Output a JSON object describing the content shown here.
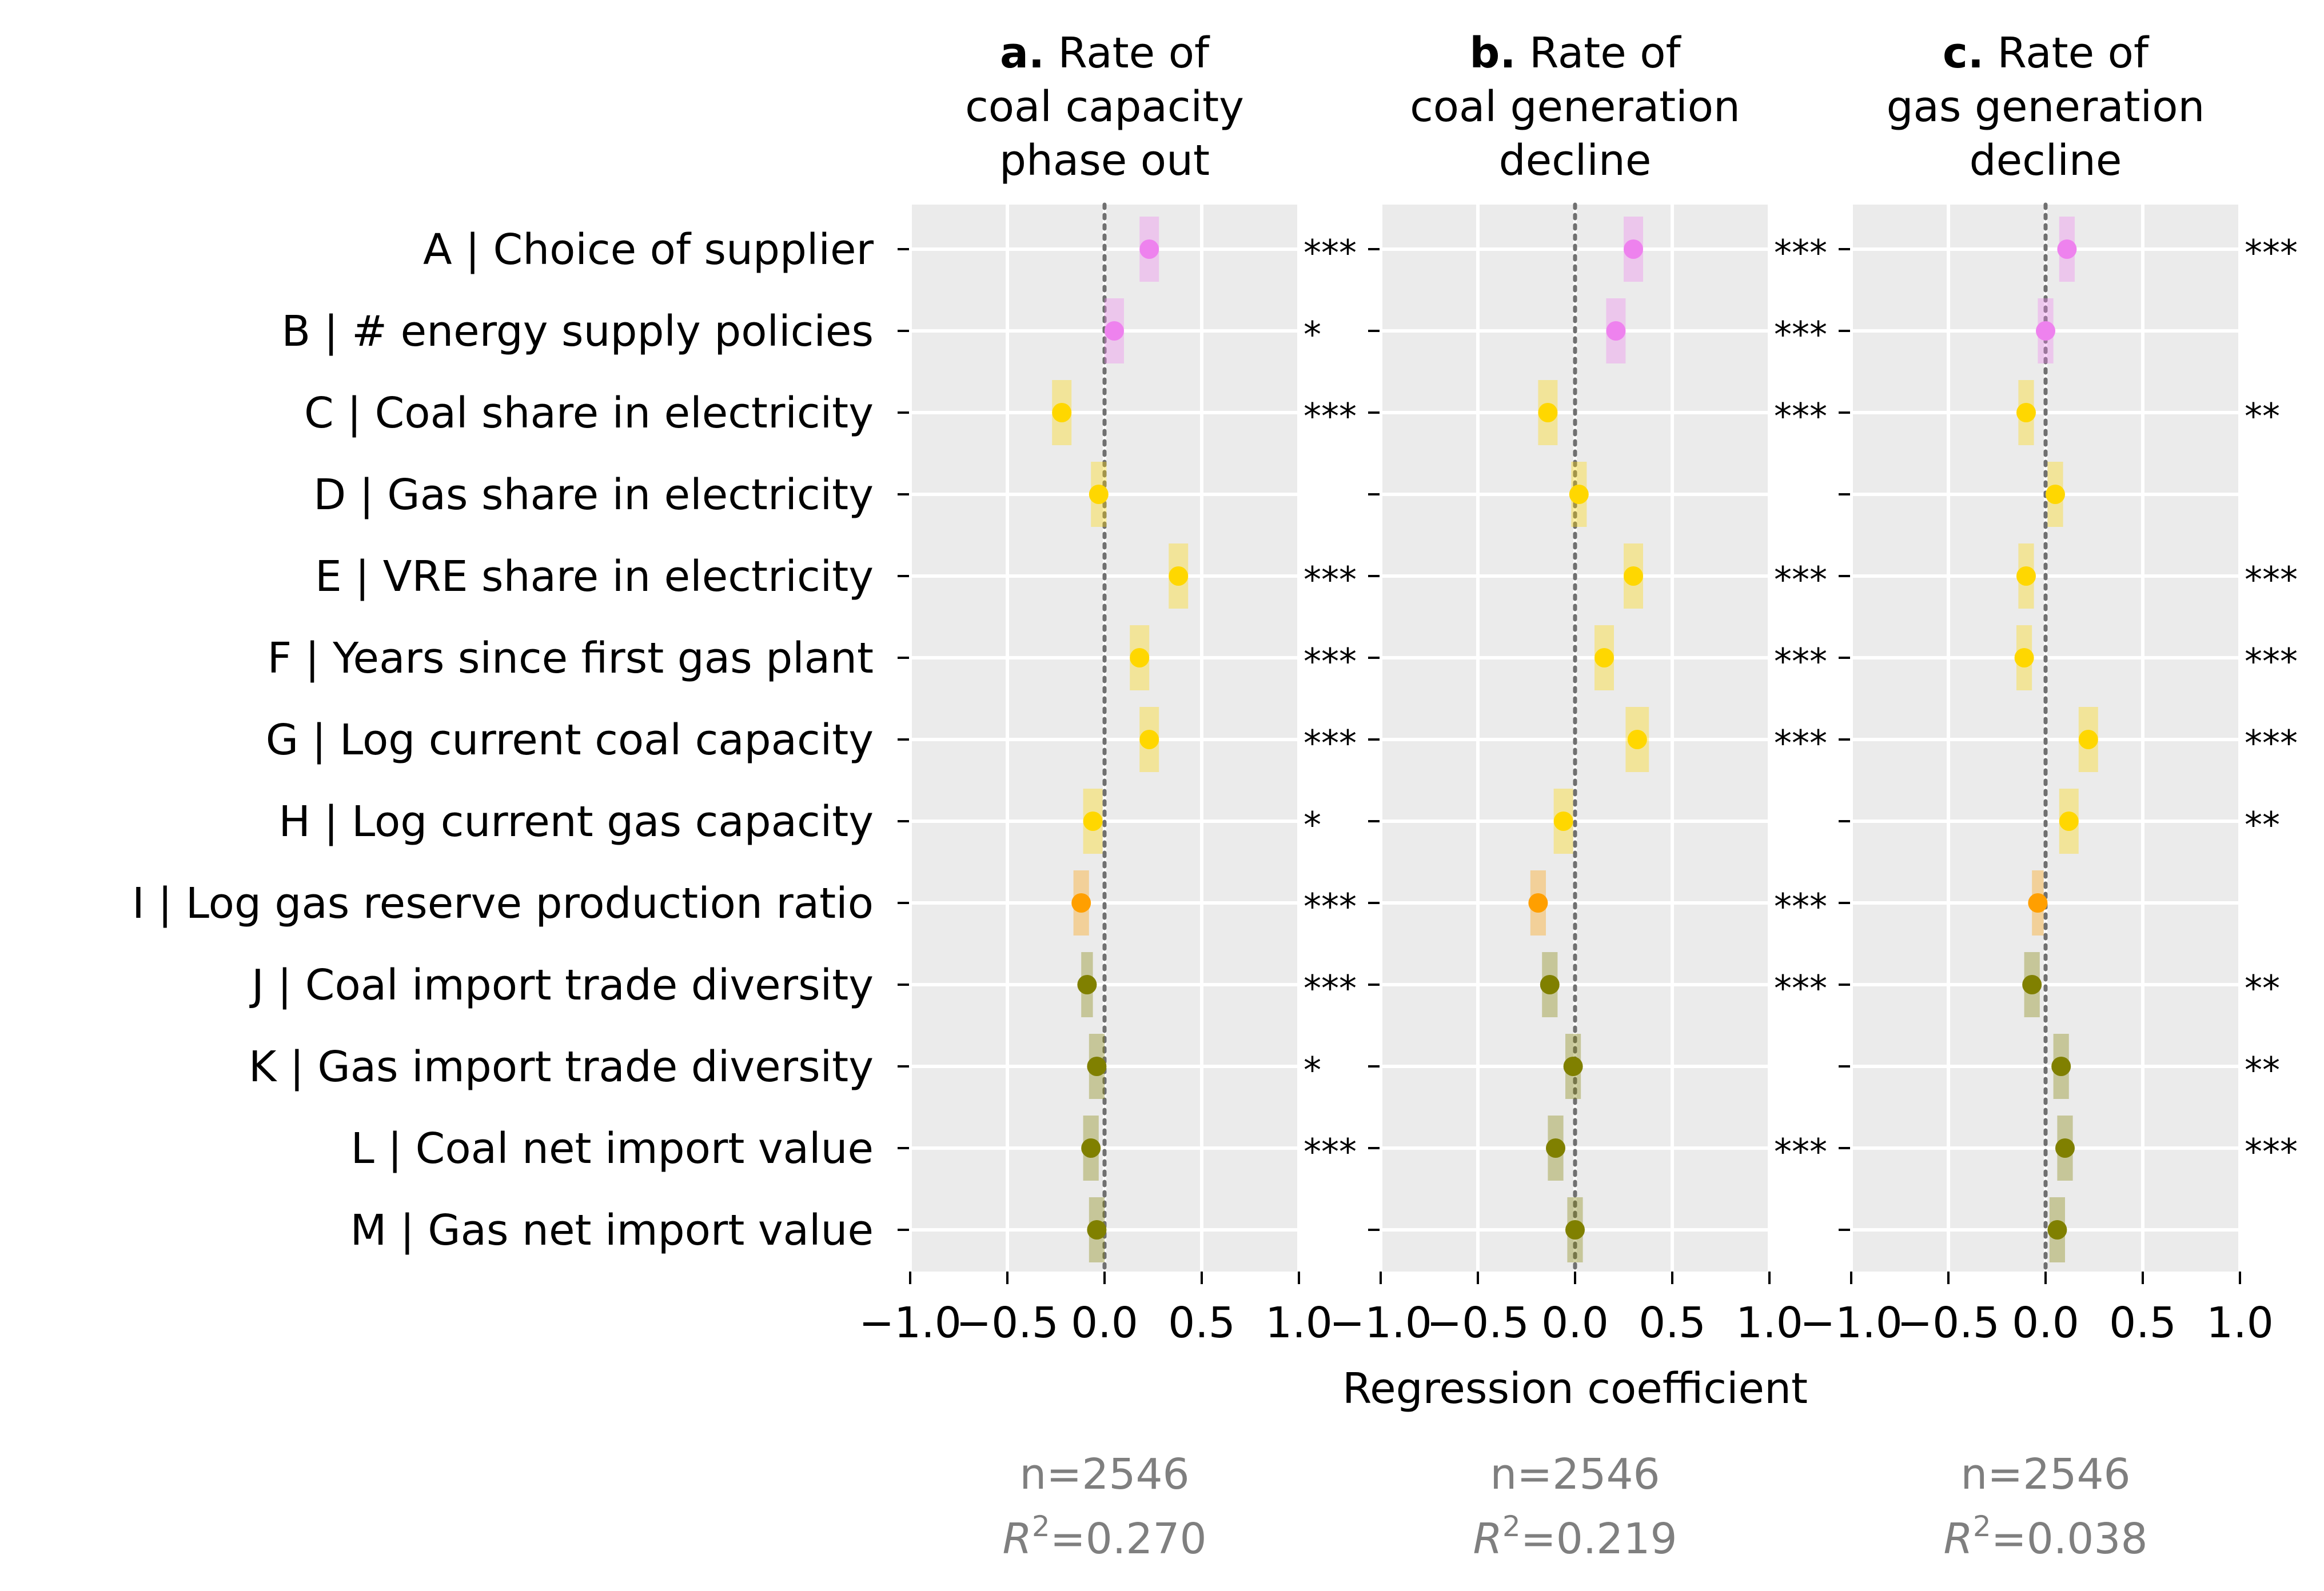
{
  "chart_data": {
    "type": "scatter",
    "xlabel": "Regression coefficient",
    "xlim": [
      -1.0,
      1.0
    ],
    "xticks": [
      -1.0,
      -0.5,
      0.0,
      0.5,
      1.0
    ],
    "xtick_labels": [
      "−1.0",
      "−0.5",
      "0.0",
      "0.5",
      "1.0"
    ],
    "grid": true,
    "reference_line": 0.0,
    "variables": [
      "A | Choice of supplier",
      "B | # energy supply policies",
      "C | Coal share in electricity",
      "D | Gas share in electricity",
      "E | VRE share in electricity",
      "F | Years since first gas plant",
      "G | Log current coal capacity",
      "H | Log current gas capacity",
      "I | Log gas reserve production ratio",
      "J | Coal import trade diversity",
      "K | Gas import trade diversity",
      "L | Coal net import value",
      "M | Gas net import value"
    ],
    "colors": [
      "#ee82ee",
      "#ee82ee",
      "#ffd700",
      "#ffd700",
      "#ffd700",
      "#ffd700",
      "#ffd700",
      "#ffd700",
      "#ff9f00",
      "#808000",
      "#808000",
      "#808000",
      "#808000"
    ],
    "panels": [
      {
        "letter": "a.",
        "title": [
          "Rate of",
          "coal capacity",
          "phase out"
        ],
        "n": "n=2546",
        "r2": "0.270",
        "coef": [
          0.23,
          0.05,
          -0.22,
          -0.03,
          0.38,
          0.18,
          0.23,
          -0.06,
          -0.12,
          -0.09,
          -0.04,
          -0.07,
          -0.04
        ],
        "ci": [
          0.05,
          0.05,
          0.05,
          0.04,
          0.05,
          0.05,
          0.05,
          0.05,
          0.04,
          0.03,
          0.04,
          0.04,
          0.04
        ],
        "sig": [
          "***",
          "*",
          "***",
          "",
          "***",
          "***",
          "***",
          "*",
          "***",
          "***",
          "*",
          "***",
          ""
        ]
      },
      {
        "letter": "b.",
        "title": [
          "Rate of",
          "coal generation",
          "decline"
        ],
        "n": "n=2546",
        "r2": "0.219",
        "coef": [
          0.3,
          0.21,
          -0.14,
          0.02,
          0.3,
          0.15,
          0.32,
          -0.06,
          -0.19,
          -0.13,
          -0.01,
          -0.1,
          0.0
        ],
        "ci": [
          0.05,
          0.05,
          0.05,
          0.04,
          0.05,
          0.05,
          0.06,
          0.05,
          0.04,
          0.04,
          0.04,
          0.04,
          0.04
        ],
        "sig": [
          "***",
          "***",
          "***",
          "",
          "***",
          "***",
          "***",
          "",
          "***",
          "***",
          "",
          "***",
          ""
        ]
      },
      {
        "letter": "c.",
        "title": [
          "Rate of",
          "gas generation",
          "decline"
        ],
        "n": "n=2546",
        "r2": "0.038",
        "coef": [
          0.11,
          0.0,
          -0.1,
          0.05,
          -0.1,
          -0.11,
          0.22,
          0.12,
          -0.04,
          -0.07,
          0.08,
          0.1,
          0.06
        ],
        "ci": [
          0.04,
          0.04,
          0.04,
          0.04,
          0.04,
          0.04,
          0.05,
          0.05,
          0.03,
          0.04,
          0.04,
          0.04,
          0.04
        ],
        "sig": [
          "***",
          "",
          "**",
          "",
          "***",
          "***",
          "***",
          "**",
          "",
          "**",
          "**",
          "***",
          ""
        ]
      }
    ]
  }
}
